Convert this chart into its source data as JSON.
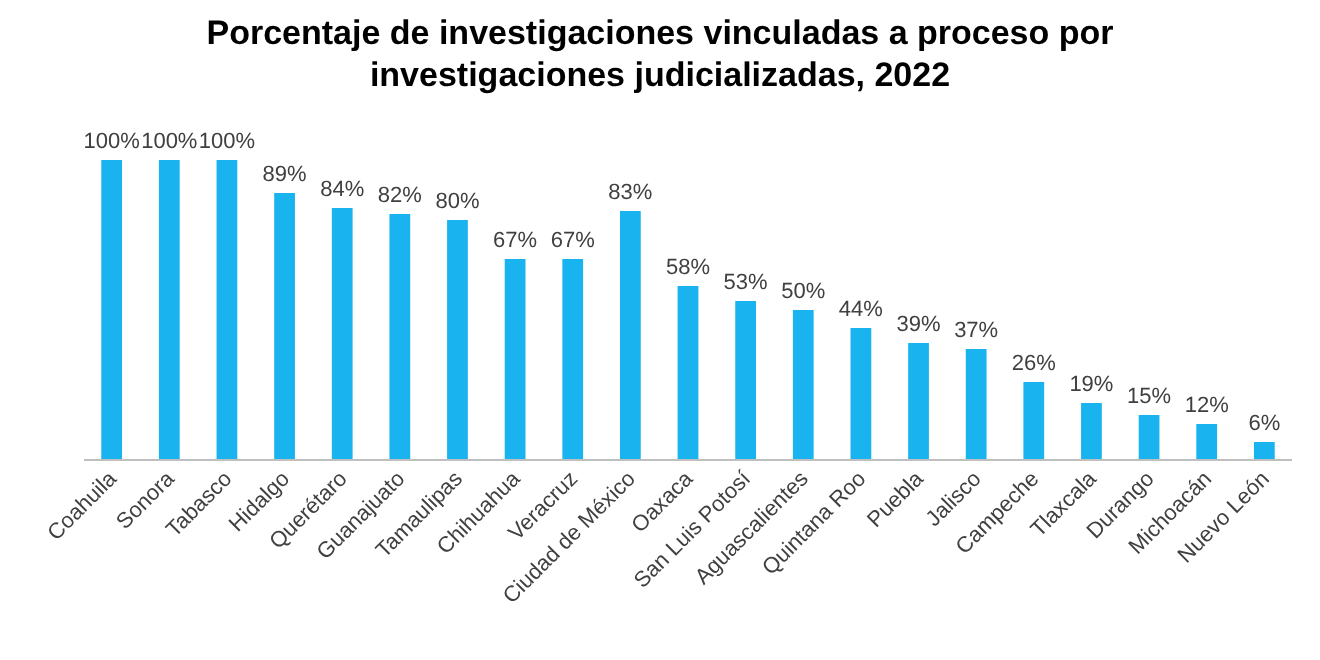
{
  "chart_data": {
    "type": "bar",
    "title": "Porcentaje de investigaciones vinculadas a proceso por investigaciones judicializadas, 2022",
    "categories": [
      "Coahuila",
      "Sonora",
      "Tabasco",
      "Hidalgo",
      "Querétaro",
      "Guanajuato",
      "Tamaulipas",
      "Chihuahua",
      "Veracruz",
      "Ciudad de México",
      "Oaxaca",
      "San Luis Potosí",
      "Aguascalientes",
      "Quintana Roo",
      "Puebla",
      "Jalisco",
      "Campeche",
      "Tlaxcala",
      "Durango",
      "Michoacán",
      "Nuevo León"
    ],
    "values": [
      100,
      100,
      100,
      89,
      84,
      82,
      80,
      67,
      67,
      83,
      58,
      53,
      50,
      44,
      39,
      37,
      26,
      19,
      15,
      12,
      6
    ],
    "value_labels": [
      "100%",
      "100%",
      "100%",
      "89%",
      "84%",
      "82%",
      "80%",
      "67%",
      "67%",
      "83%",
      "58%",
      "53%",
      "50%",
      "44%",
      "39%",
      "37%",
      "26%",
      "19%",
      "15%",
      "12%",
      "6%"
    ],
    "color": "#19b3f0"
  }
}
